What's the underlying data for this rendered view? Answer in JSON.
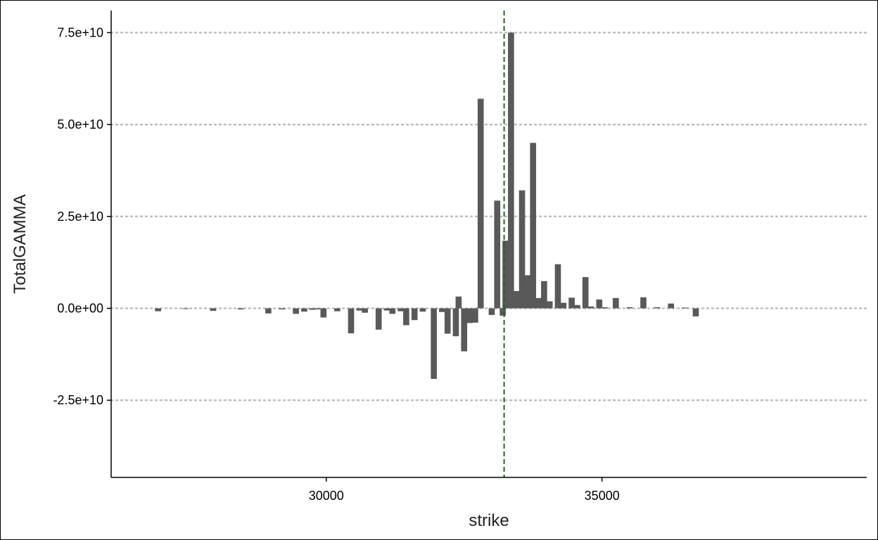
{
  "chart_data": {
    "type": "bar",
    "xlabel": "strike",
    "ylabel": "TotalGAMMA",
    "xlim": [
      26100,
      39800
    ],
    "ylim": [
      -46000000000,
      81000000000
    ],
    "x_ticks": [
      {
        "value": 30000,
        "label": "30000"
      },
      {
        "value": 35000,
        "label": "35000"
      }
    ],
    "y_ticks": [
      {
        "value": -25000000000,
        "label": "-2.5e+10"
      },
      {
        "value": 0,
        "label": "0.0e+00"
      },
      {
        "value": 25000000000,
        "label": "2.5e+10"
      },
      {
        "value": 50000000000,
        "label": "5.0e+10"
      },
      {
        "value": 75000000000,
        "label": "7.5e+10"
      }
    ],
    "grid": "horizontal dotted",
    "reference_line": {
      "x": 33225,
      "color": "#1a6b1a",
      "style": "dashed"
    },
    "bar_color": "#595959",
    "bar_width": 110,
    "x": [
      26950,
      27450,
      27950,
      28450,
      28950,
      29200,
      29450,
      29600,
      29750,
      29850,
      29950,
      30200,
      30450,
      30600,
      30700,
      30950,
      31100,
      31200,
      31350,
      31450,
      31600,
      31750,
      31950,
      32100,
      32200,
      32350,
      32400,
      32500,
      32600,
      32700,
      32800,
      33000,
      33100,
      33200,
      33250,
      33350,
      33450,
      33550,
      33650,
      33750,
      33850,
      33950,
      34050,
      34200,
      34300,
      34450,
      34550,
      34700,
      34800,
      34950,
      35050,
      35250,
      35500,
      35750,
      36000,
      36250,
      36500,
      36700,
      36950
    ],
    "values": [
      -800000000,
      -200000000,
      -700000000,
      -300000000,
      -1400000000,
      -300000000,
      -1500000000,
      -900000000,
      -400000000,
      -300000000,
      -2500000000,
      -800000000,
      -6800000000,
      -600000000,
      -1200000000,
      -5800000000,
      -600000000,
      -1500000000,
      -800000000,
      -4600000000,
      -3200000000,
      -900000000,
      -19200000000,
      -1000000000,
      -6900000000,
      -7600000000,
      3200000000,
      -11700000000,
      -4000000000,
      -3900000000,
      57000000000,
      -1800000000,
      29300000000,
      -2000000000,
      18400000000,
      75000000000,
      4700000000,
      32100000000,
      9000000000,
      45000000000,
      2800000000,
      7400000000,
      1900000000,
      12000000000,
      1500000000,
      2900000000,
      900000000,
      8500000000,
      500000000,
      2400000000,
      300000000,
      2800000000,
      300000000,
      3000000000,
      300000000,
      1300000000,
      200000000,
      -2200000000,
      0
    ]
  }
}
